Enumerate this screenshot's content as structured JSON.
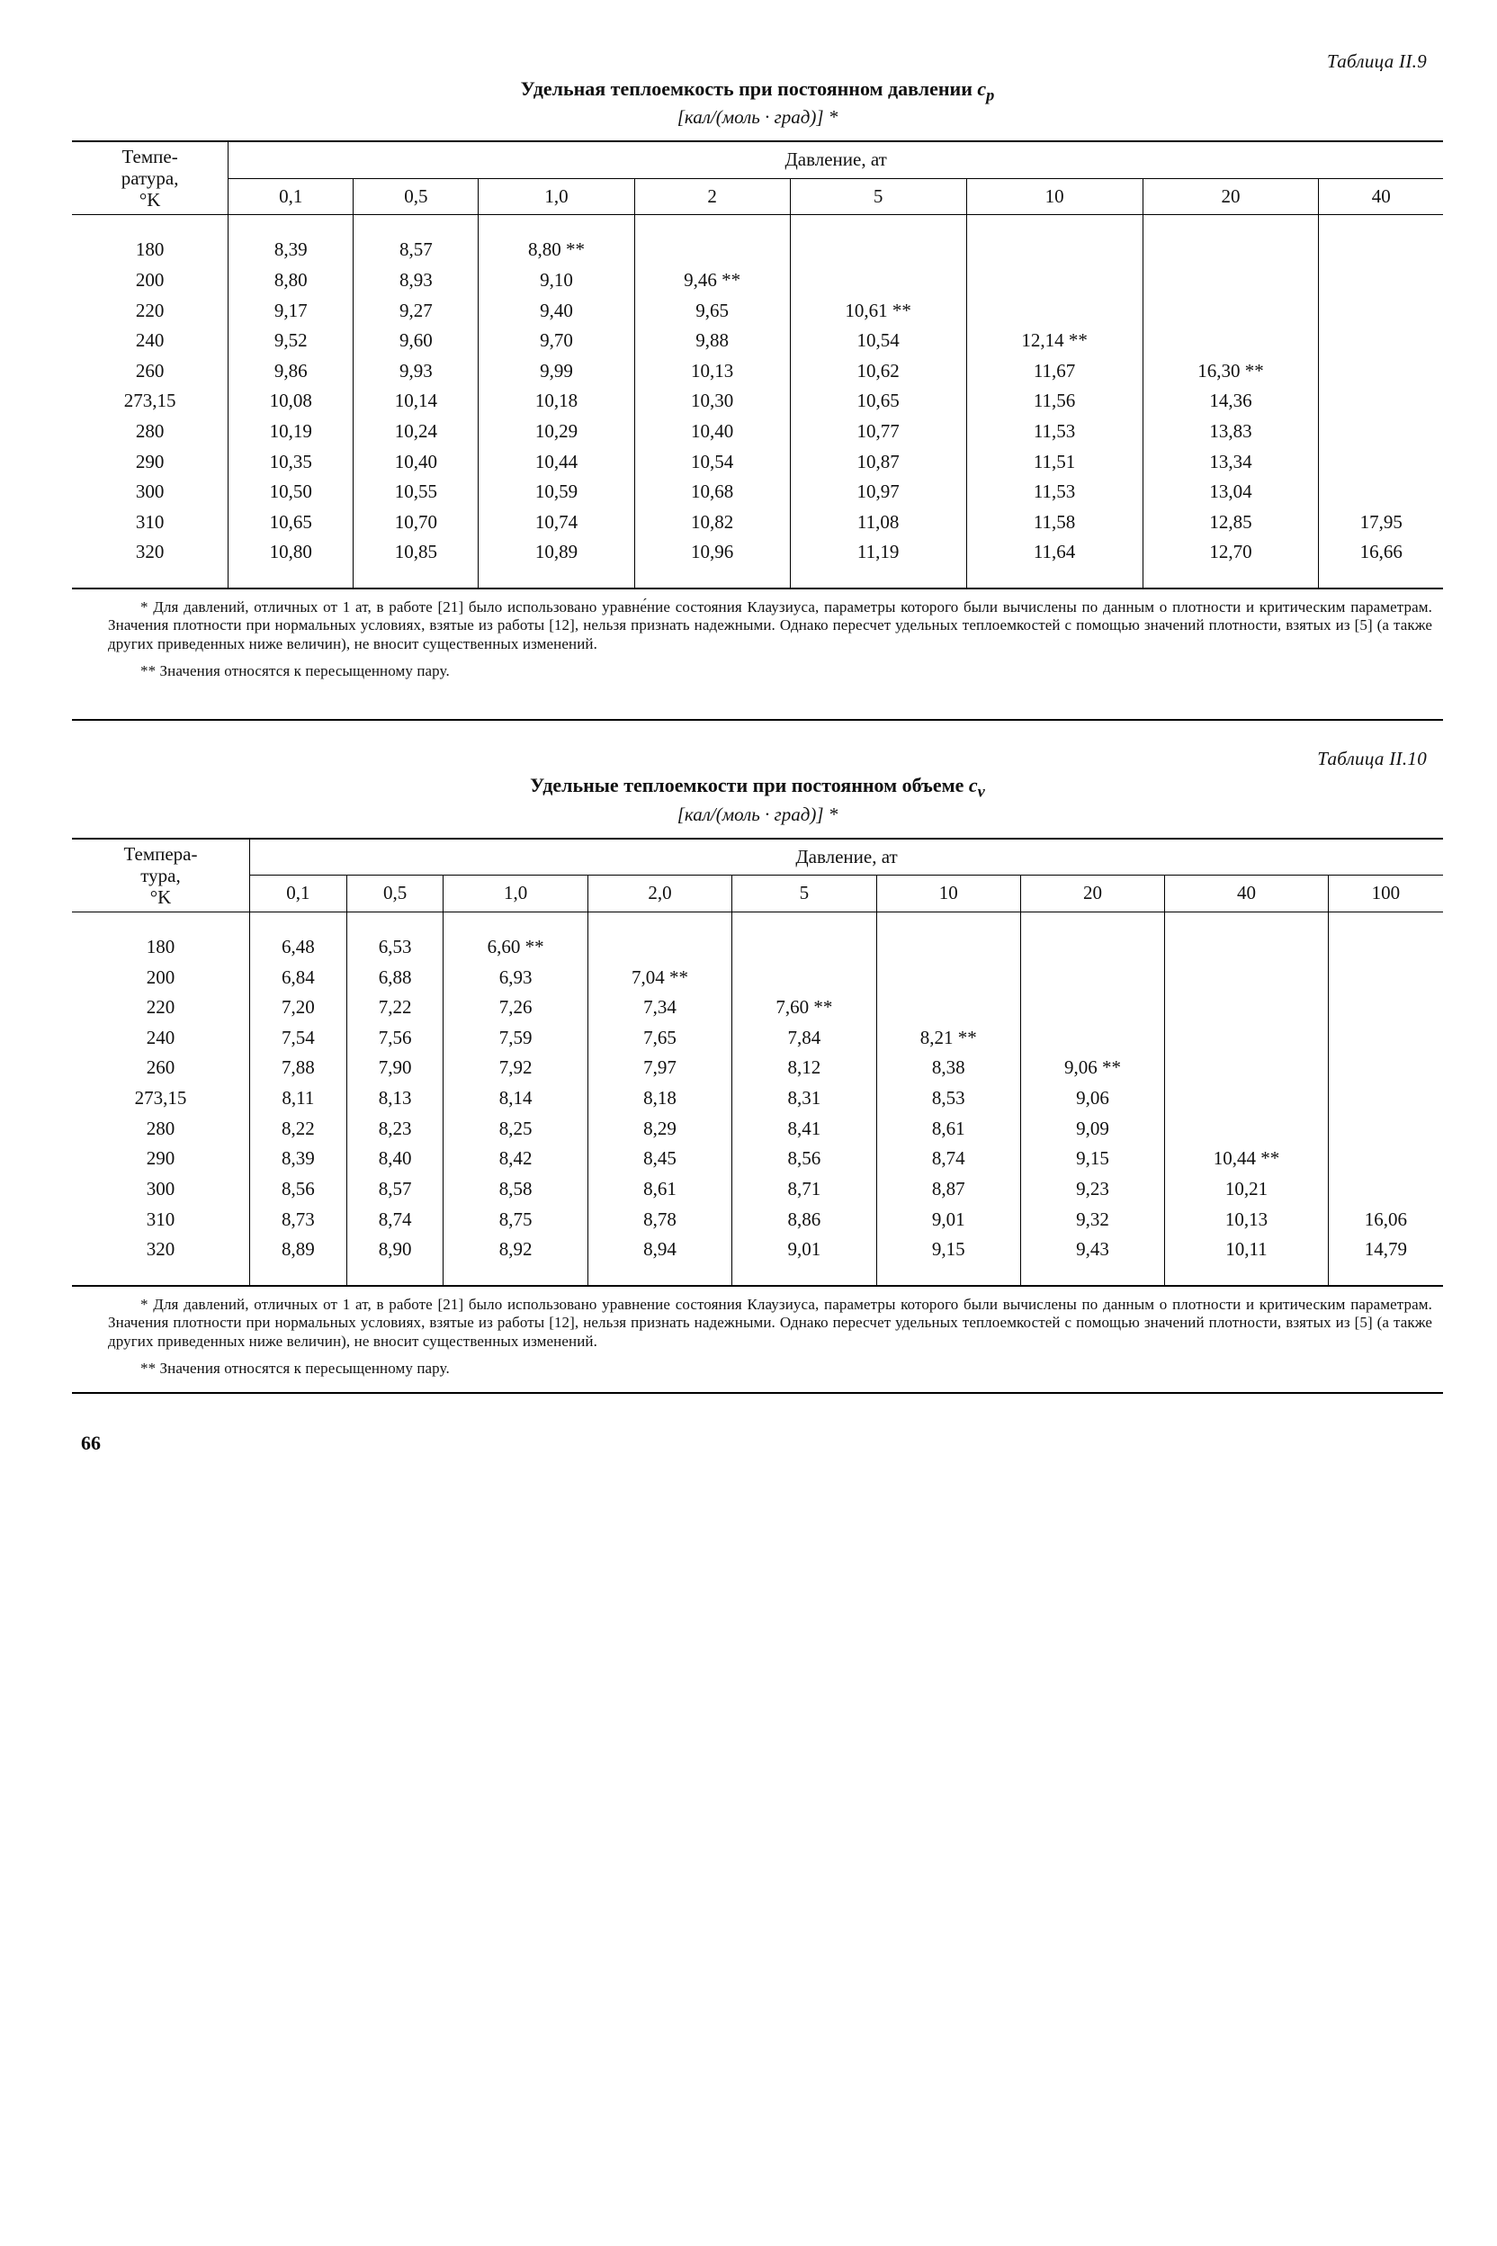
{
  "page_number": "66",
  "table1": {
    "label": "Таблица II.9",
    "title_prefix": "Удельная теплоемкость при постоянном давлении ",
    "title_symbol": "c",
    "title_sub": "p",
    "units": "[кал/(моль · град)] *",
    "row_header_html": "Темпе-<br>ратура,<br>°K",
    "pressure_label": "Давление, ат",
    "col_labels": [
      "0,1",
      "0,5",
      "1,0",
      "2",
      "5",
      "10",
      "20",
      "40"
    ],
    "temps": [
      "180",
      "200",
      "220",
      "240",
      "260",
      "273,15",
      "280",
      "290",
      "300",
      "310",
      "320"
    ],
    "cells": [
      [
        "8,39",
        "8,57",
        "8,80 **",
        "",
        "",
        "",
        "",
        ""
      ],
      [
        "8,80",
        "8,93",
        "9,10",
        "9,46 **",
        "",
        "",
        "",
        ""
      ],
      [
        "9,17",
        "9,27",
        "9,40",
        "9,65",
        "10,61 **",
        "",
        "",
        ""
      ],
      [
        "9,52",
        "9,60",
        "9,70",
        "9,88",
        "10,54",
        "12,14 **",
        "",
        ""
      ],
      [
        "9,86",
        "9,93",
        "9,99",
        "10,13",
        "10,62",
        "11,67",
        "16,30 **",
        ""
      ],
      [
        "10,08",
        "10,14",
        "10,18",
        "10,30",
        "10,65",
        "11,56",
        "14,36",
        ""
      ],
      [
        "10,19",
        "10,24",
        "10,29",
        "10,40",
        "10,77",
        "11,53",
        "13,83",
        ""
      ],
      [
        "10,35",
        "10,40",
        "10,44",
        "10,54",
        "10,87",
        "11,51",
        "13,34",
        ""
      ],
      [
        "10,50",
        "10,55",
        "10,59",
        "10,68",
        "10,97",
        "11,53",
        "13,04",
        ""
      ],
      [
        "10,65",
        "10,70",
        "10,74",
        "10,82",
        "11,08",
        "11,58",
        "12,85",
        "17,95"
      ],
      [
        "10,80",
        "10,85",
        "10,89",
        "10,96",
        "11,19",
        "11,64",
        "12,70",
        "16,66"
      ]
    ],
    "footnote1": "* Для давлений, отличных от 1 ат, в работе [21] было использовано уравне́ние состояния Клаузиуса, параметры которого были вычислены по данным о плотности и критическим параметрам. Значения плотности при нормальных условиях, взятые из работы [12], нельзя признать надежными. Однако пересчет удельных теплоемкостей с помощью значений плотности, взятых из [5] (а также других приведенных ниже величин), не вносит существенных изменений.",
    "footnote2": "** Значения относятся к пересыщенному пару."
  },
  "table2": {
    "label": "Таблица II.10",
    "title_prefix": "Удельные теплоемкости при постоянном объеме ",
    "title_symbol": "c",
    "title_sub": "v",
    "units": "[кал/(моль · град)] *",
    "row_header_html": "Темпера-<br>тура,<br>°K",
    "pressure_label": "Давление, ат",
    "col_labels": [
      "0,1",
      "0,5",
      "1,0",
      "2,0",
      "5",
      "10",
      "20",
      "40",
      "100"
    ],
    "temps": [
      "180",
      "200",
      "220",
      "240",
      "260",
      "273,15",
      "280",
      "290",
      "300",
      "310",
      "320"
    ],
    "cells": [
      [
        "6,48",
        "6,53",
        "6,60 **",
        "",
        "",
        "",
        "",
        "",
        ""
      ],
      [
        "6,84",
        "6,88",
        "6,93",
        "7,04 **",
        "",
        "",
        "",
        "",
        ""
      ],
      [
        "7,20",
        "7,22",
        "7,26",
        "7,34",
        "7,60 **",
        "",
        "",
        "",
        ""
      ],
      [
        "7,54",
        "7,56",
        "7,59",
        "7,65",
        "7,84",
        "8,21 **",
        "",
        "",
        ""
      ],
      [
        "7,88",
        "7,90",
        "7,92",
        "7,97",
        "8,12",
        "8,38",
        "9,06 **",
        "",
        ""
      ],
      [
        "8,11",
        "8,13",
        "8,14",
        "8,18",
        "8,31",
        "8,53",
        "9,06",
        "",
        ""
      ],
      [
        "8,22",
        "8,23",
        "8,25",
        "8,29",
        "8,41",
        "8,61",
        "9,09",
        "",
        ""
      ],
      [
        "8,39",
        "8,40",
        "8,42",
        "8,45",
        "8,56",
        "8,74",
        "9,15",
        "10,44 **",
        ""
      ],
      [
        "8,56",
        "8,57",
        "8,58",
        "8,61",
        "8,71",
        "8,87",
        "9,23",
        "10,21",
        ""
      ],
      [
        "8,73",
        "8,74",
        "8,75",
        "8,78",
        "8,86",
        "9,01",
        "9,32",
        "10,13",
        "16,06"
      ],
      [
        "8,89",
        "8,90",
        "8,92",
        "8,94",
        "9,01",
        "9,15",
        "9,43",
        "10,11",
        "14,79"
      ]
    ],
    "footnote1": "* Для давлений, отличных от 1 ат, в работе [21] было использовано уравнение состояния Клаузиуса, параметры которого были вычислены по данным о плотности и критическим параметрам. Значения плотности при нормальных условиях, взятые из работы [12], нельзя признать надежными. Однако пересчет удельных теплоемкостей с помощью значений плотности, взятых из [5] (а также других приведенных ниже величин), не вносит существенных изменений.",
    "footnote2": "** Значения относятся к пересыщенному пару."
  }
}
